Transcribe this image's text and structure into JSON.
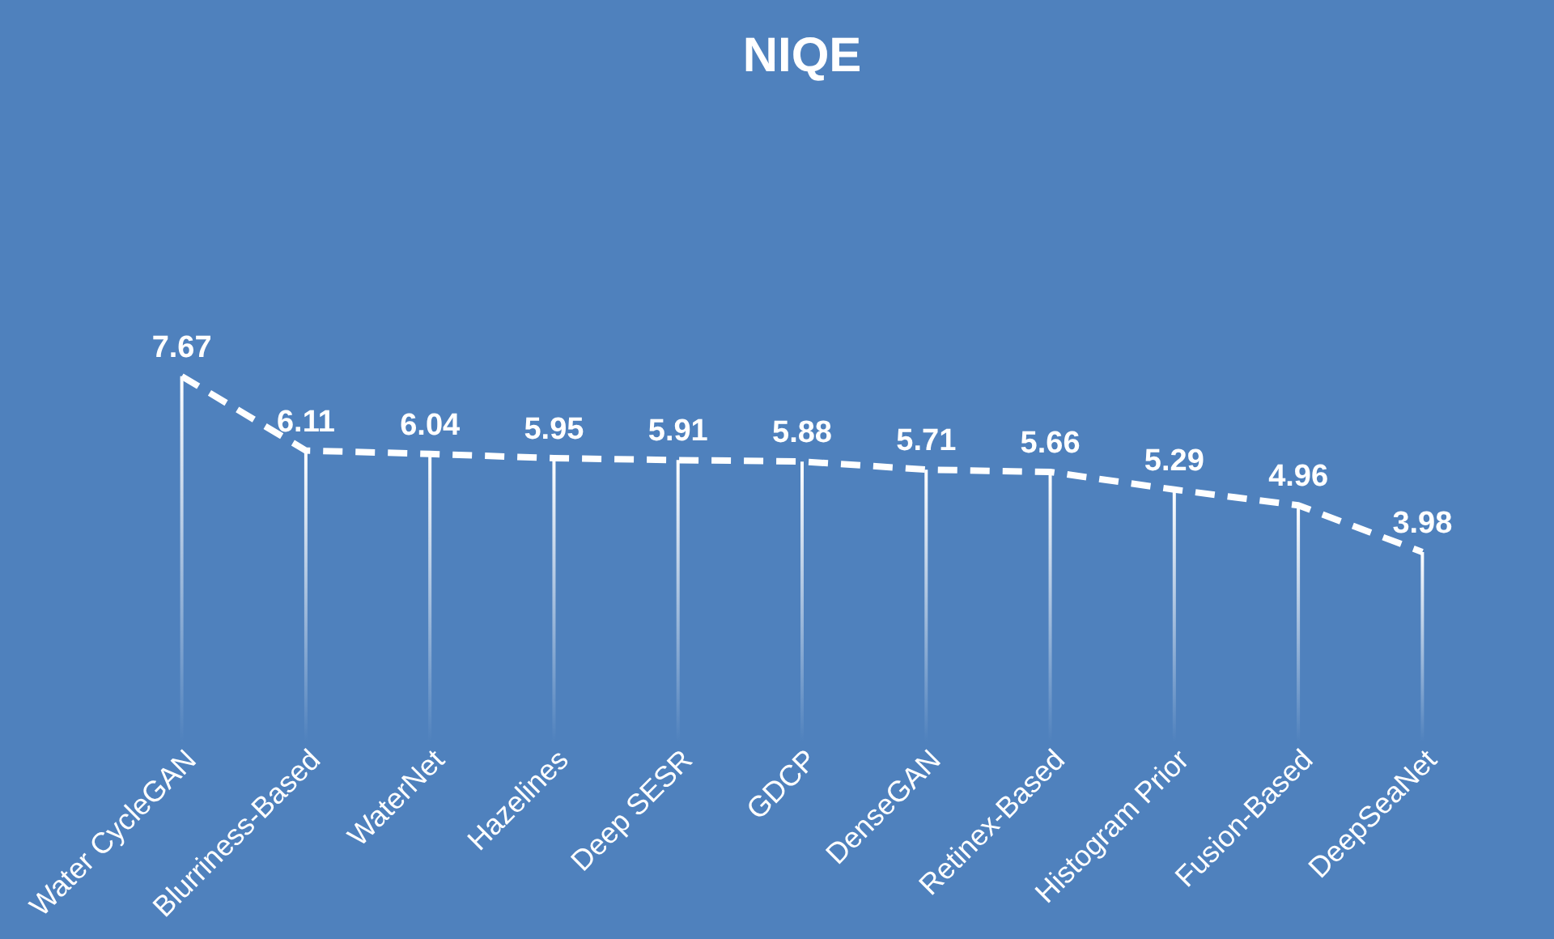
{
  "chart_data": {
    "type": "line",
    "title": "NIQE",
    "categories": [
      "Water CycleGAN",
      "Blurriness-Based",
      "WaterNet",
      "Hazelines",
      "Deep SESR",
      "GDCP",
      "DenseGAN",
      "Retinex-Based",
      "Histogram Prior",
      "Fusion-Based",
      "DeepSeaNet"
    ],
    "series": [
      {
        "type": "bar",
        "color": "#ffffff",
        "values": [
          7.67,
          6.11,
          6.04,
          5.95,
          5.91,
          5.88,
          5.71,
          5.66,
          5.29,
          4.96,
          3.98
        ]
      },
      {
        "color": "#ffffff",
        "values": [
          7.67,
          6.11,
          6.04,
          5.95,
          5.91,
          5.88,
          5.71,
          5.66,
          5.29,
          4.96,
          3.98
        ],
        "value_labels": [
          "7.67",
          "6.11",
          "6.04",
          "5.95",
          "5.91",
          "5.88",
          "5.71",
          "5.66",
          "5.29",
          "4.96",
          "3.98"
        ]
      }
    ],
    "marker": "none",
    "line_style": "dashed"
  }
}
